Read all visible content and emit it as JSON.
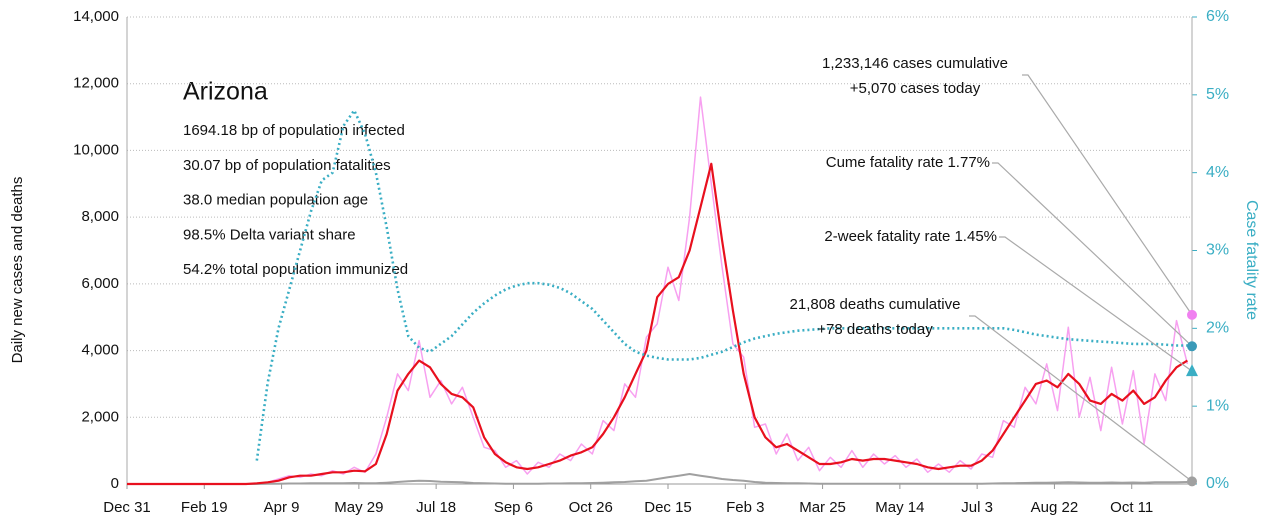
{
  "chart_data": {
    "type": "line",
    "panel": {
      "title": "Arizona",
      "lines": [
        "1694.18 bp of population infected",
        "30.07 bp of population fatalities",
        "38.0 median population age",
        "98.5% Delta variant share",
        "54.2% total population immunized"
      ]
    },
    "ylabel": "Daily new cases and deaths",
    "y2label": "Case fatality rate",
    "x": [
      0,
      7,
      14,
      21,
      28,
      35,
      42,
      49,
      56,
      63,
      70,
      77,
      84,
      91,
      98,
      105,
      112,
      119,
      126,
      133,
      140,
      147,
      154,
      161,
      168,
      175,
      182,
      189,
      196,
      203,
      210,
      217,
      224,
      231,
      238,
      245,
      252,
      259,
      266,
      273,
      280,
      287,
      294,
      301,
      308,
      315,
      322,
      329,
      336,
      343,
      350,
      357,
      364,
      371,
      378,
      385,
      392,
      399,
      406,
      413,
      420,
      427,
      434,
      441,
      448,
      455,
      462,
      469,
      476,
      483,
      490,
      497,
      504,
      511,
      518,
      525,
      532,
      539,
      546,
      553,
      560,
      567,
      574,
      581,
      588,
      595,
      602,
      609,
      616,
      623,
      630,
      637,
      644,
      651,
      658,
      665,
      672,
      679,
      686
    ],
    "xlim": [
      0,
      689
    ],
    "xticks": [
      {
        "value": 0,
        "label": "Dec 31"
      },
      {
        "value": 50,
        "label": "Feb 19"
      },
      {
        "value": 100,
        "label": "Apr 9"
      },
      {
        "value": 150,
        "label": "May 29"
      },
      {
        "value": 200,
        "label": "Jul 18"
      },
      {
        "value": 250,
        "label": "Sep 6"
      },
      {
        "value": 300,
        "label": "Oct 26"
      },
      {
        "value": 350,
        "label": "Dec 15"
      },
      {
        "value": 400,
        "label": "Feb 3"
      },
      {
        "value": 450,
        "label": "Mar 25"
      },
      {
        "value": 500,
        "label": "May 14"
      },
      {
        "value": 550,
        "label": "Jul 3"
      },
      {
        "value": 600,
        "label": "Aug 22"
      },
      {
        "value": 650,
        "label": "Oct 11"
      }
    ],
    "ylim": [
      0,
      14000
    ],
    "yticks": [
      0,
      {
        "value": 2000,
        "label": "2,000"
      },
      {
        "value": 4000,
        "label": "4,000"
      },
      {
        "value": 6000,
        "label": "6,000"
      },
      {
        "value": 8000,
        "label": "8,000"
      },
      {
        "value": 10000,
        "label": "10,000"
      },
      {
        "value": 12000,
        "label": "12,000"
      },
      {
        "value": 14000,
        "label": "14,000"
      }
    ],
    "y2lim": [
      0,
      6
    ],
    "y2ticks": [
      {
        "value": 0,
        "label": "0%"
      },
      {
        "value": 1,
        "label": "1%"
      },
      {
        "value": 2,
        "label": "2%"
      },
      {
        "value": 3,
        "label": "3%"
      },
      {
        "value": 4,
        "label": "4%"
      },
      {
        "value": 5,
        "label": "5%"
      },
      {
        "value": 6,
        "label": "6%"
      }
    ],
    "grid": true,
    "series": [
      {
        "color": "#f7a0f0",
        "width": 1.5,
        "values": [
          0,
          0,
          0,
          0,
          0,
          0,
          0,
          0,
          0,
          0,
          0,
          0,
          0,
          50,
          150,
          250,
          200,
          300,
          250,
          400,
          300,
          500,
          350,
          900,
          2000,
          3300,
          2800,
          4300,
          2600,
          3100,
          2400,
          2900,
          2000,
          1100,
          1000,
          500,
          700,
          300,
          650,
          500,
          900,
          700,
          1200,
          900,
          1900,
          1600,
          3000,
          2600,
          4400,
          4800,
          6500,
          5500,
          8000,
          11600,
          9000,
          6500,
          4200,
          3800,
          1700,
          1800,
          900,
          1500,
          700,
          1100,
          400,
          800,
          500,
          1000,
          500,
          900,
          600,
          850,
          500,
          750,
          350,
          600,
          350,
          700,
          450,
          900,
          800,
          1900,
          1700,
          2900,
          2400,
          3600,
          2200,
          4700,
          2000,
          3200,
          1600,
          3500,
          1800,
          3400,
          1200,
          3300,
          2500,
          4900,
          3600
        ]
      },
      {
        "color": "#a0a0a0",
        "width": 2,
        "values": [
          0,
          0,
          0,
          0,
          0,
          0,
          0,
          0,
          0,
          0,
          0,
          0,
          0,
          5,
          10,
          15,
          15,
          20,
          20,
          25,
          25,
          30,
          20,
          25,
          40,
          60,
          80,
          100,
          90,
          70,
          60,
          50,
          30,
          20,
          15,
          10,
          10,
          10,
          10,
          15,
          15,
          20,
          25,
          30,
          40,
          50,
          60,
          80,
          100,
          150,
          200,
          250,
          300,
          250,
          200,
          150,
          120,
          100,
          60,
          40,
          30,
          25,
          20,
          15,
          10,
          10,
          10,
          10,
          10,
          10,
          10,
          10,
          8,
          8,
          8,
          8,
          8,
          10,
          10,
          10,
          15,
          20,
          25,
          30,
          35,
          40,
          45,
          50,
          45,
          40,
          40,
          45,
          40,
          45,
          40,
          50,
          50,
          55,
          60
        ]
      },
      {
        "color": "#e8101e",
        "width": 2.2,
        "values": [
          0,
          0,
          0,
          0,
          0,
          0,
          0,
          0,
          0,
          0,
          0,
          0,
          20,
          50,
          100,
          200,
          250,
          250,
          300,
          350,
          350,
          400,
          380,
          600,
          1500,
          2800,
          3300,
          3700,
          3500,
          3000,
          2700,
          2600,
          2300,
          1400,
          900,
          650,
          500,
          450,
          500,
          600,
          700,
          850,
          950,
          1100,
          1500,
          2000,
          2600,
          3300,
          4000,
          5600,
          6000,
          6200,
          7000,
          8300,
          9600,
          7300,
          5200,
          3300,
          2000,
          1400,
          1100,
          1200,
          1000,
          800,
          600,
          600,
          650,
          750,
          700,
          750,
          750,
          700,
          650,
          600,
          500,
          450,
          500,
          550,
          550,
          700,
          1000,
          1500,
          2000,
          2500,
          3000,
          3100,
          2900,
          3300,
          3000,
          2500,
          2400,
          2700,
          2500,
          2800,
          2400,
          2600,
          3100,
          3500,
          3700
        ]
      },
      {
        "color": "#3aaec4",
        "width": 2.6,
        "dotted": true,
        "axis": "y2",
        "values": [
          null,
          null,
          null,
          null,
          null,
          null,
          null,
          null,
          null,
          null,
          null,
          null,
          0.3,
          1.3,
          2.0,
          2.5,
          3.0,
          3.5,
          3.9,
          4.0,
          4.6,
          4.8,
          4.5,
          4.0,
          3.3,
          2.5,
          1.9,
          1.75,
          1.7,
          1.8,
          1.9,
          2.05,
          2.2,
          2.32,
          2.42,
          2.5,
          2.55,
          2.58,
          2.58,
          2.56,
          2.52,
          2.45,
          2.35,
          2.25,
          2.1,
          1.95,
          1.8,
          1.7,
          1.65,
          1.62,
          1.6,
          1.6,
          1.6,
          1.62,
          1.66,
          1.7,
          1.76,
          1.82,
          1.87,
          1.9,
          1.93,
          1.95,
          1.97,
          1.98,
          1.99,
          2.0,
          2.0,
          2.0,
          2.0,
          2.0,
          2.0,
          2.0,
          2.0,
          2.0,
          2.0,
          2.0,
          2.0,
          2.0,
          2.0,
          2.0,
          2.0,
          2.0,
          1.98,
          1.95,
          1.92,
          1.9,
          1.88,
          1.86,
          1.85,
          1.84,
          1.83,
          1.82,
          1.81,
          1.8,
          1.8,
          1.8,
          1.79,
          1.78,
          1.78
        ]
      }
    ],
    "annotations": [
      {
        "lines": [
          "1,233,146 cases cumulative",
          "+5,070 cases today"
        ],
        "value": 5070,
        "axis": "y",
        "color": "#f080f0",
        "shape": "circle"
      },
      {
        "lines": [
          "Cume fatality rate 1.77%"
        ],
        "value": 1.77,
        "axis": "y2",
        "color": "#3a9ab8",
        "shape": "circle"
      },
      {
        "lines": [
          "2-week fatality rate 1.45%"
        ],
        "value": 1.45,
        "axis": "y2",
        "color": "#3aaec4",
        "shape": "triangle"
      },
      {
        "lines": [
          "21,808 deaths cumulative",
          "+78 deaths today"
        ],
        "value": 78,
        "axis": "y",
        "color": "#a0a0a0",
        "shape": "circle"
      }
    ]
  }
}
